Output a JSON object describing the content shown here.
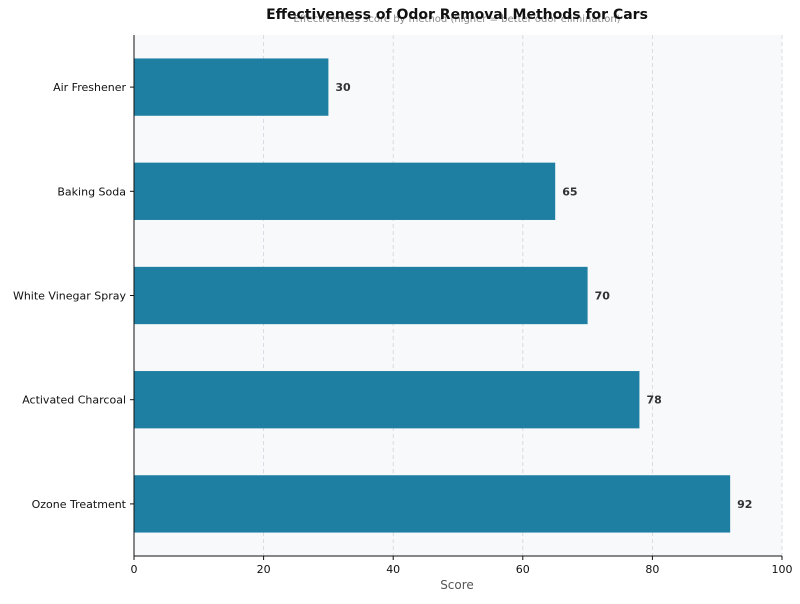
{
  "chart_data": {
    "type": "bar",
    "orientation": "horizontal",
    "title": "Effectiveness of Odor Removal Methods for Cars",
    "subtitle": "Effectiveness score by method (higher = better odor elimination)",
    "xlabel": "Score",
    "ylabel": "",
    "categories": [
      "Air Freshener",
      "Baking Soda",
      "White Vinegar Spray",
      "Activated Charcoal",
      "Ozone Treatment"
    ],
    "values": [
      30,
      65,
      70,
      78,
      92
    ],
    "xlim": [
      0,
      100
    ],
    "xticks": [
      0,
      20,
      40,
      60,
      80,
      100
    ],
    "grid": "vertical dashed",
    "bar_color": "#1f7fa3",
    "background_color": "#f7f9fb"
  }
}
